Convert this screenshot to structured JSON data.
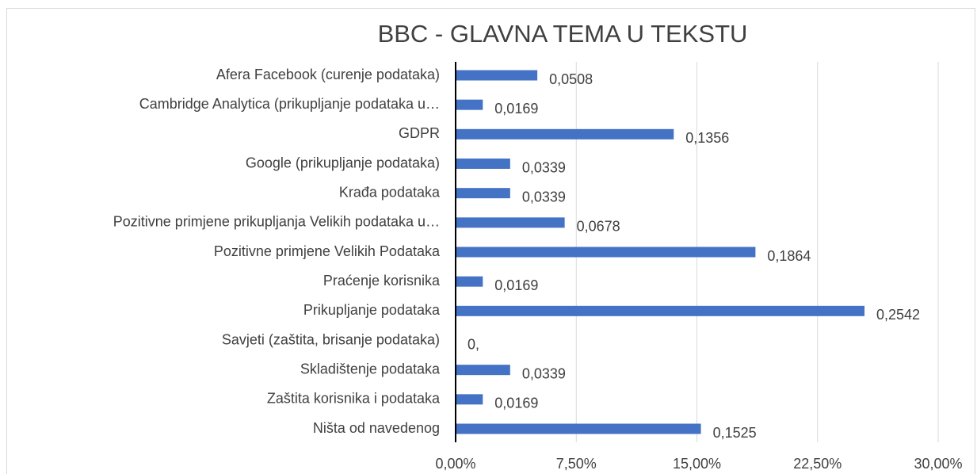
{
  "chart_data": {
    "type": "bar",
    "orientation": "horizontal",
    "title": "BBC - GLAVNA TEMA U TEKSTU",
    "categories": [
      "Afera Facebook (curenje podataka)",
      "Cambridge Analytica (prikupljanje podataka u…",
      "GDPR",
      "Google (prikupljanje podataka)",
      "Krađa podataka",
      "Pozitivne primjene prikupljanja Velikih podataka u…",
      "Pozitivne primjene Velikih Podataka",
      "Praćenje korisnika",
      "Prikupljanje podataka",
      "Savjeti (zaštita, brisanje podataka)",
      "Skladištenje podataka",
      "Zaštita korisnika i podataka",
      "Ništa od navedenog"
    ],
    "values": [
      5.08,
      1.69,
      13.56,
      3.39,
      3.39,
      6.78,
      18.64,
      1.69,
      25.42,
      0,
      3.39,
      1.69,
      15.25
    ],
    "value_labels": [
      "0,0508",
      "0,0169",
      "0,1356",
      "0,0339",
      "0,0339",
      "0,0678",
      "0,1864",
      "0,0169",
      "0,2542",
      "0,",
      "0,0339",
      "0,0169",
      "0,1525"
    ],
    "color": "#4472c4",
    "xlim": [
      0,
      30
    ],
    "xticks": [
      {
        "value": 0,
        "label": "0,00%"
      },
      {
        "value": 7.5,
        "label": "7,50%"
      },
      {
        "value": 15,
        "label": "15,00%"
      },
      {
        "value": 22.5,
        "label": "22,50%"
      },
      {
        "value": 30,
        "label": "30,00%"
      }
    ],
    "grid": true
  }
}
